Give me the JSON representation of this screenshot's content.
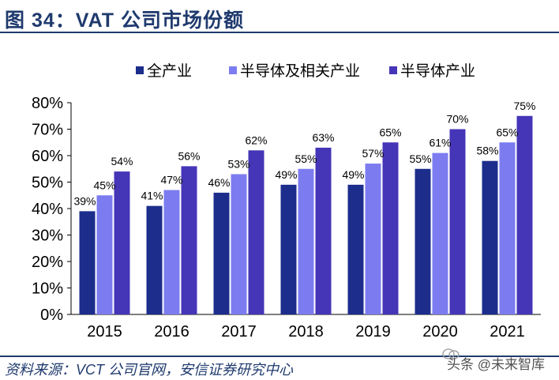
{
  "page": {
    "title": "图 34：VAT 公司市场份额",
    "source": "资料来源：VCT 公司官网，安信证券研究中心",
    "watermark": "头条 @未来智库"
  },
  "chart_data": {
    "type": "bar",
    "title": "",
    "xlabel": "",
    "ylabel": "",
    "ylim": [
      0,
      80
    ],
    "yticks": [
      "0%",
      "10%",
      "20%",
      "30%",
      "40%",
      "50%",
      "60%",
      "70%",
      "80%"
    ],
    "categories": [
      "2015",
      "2016",
      "2017",
      "2018",
      "2019",
      "2020",
      "2021"
    ],
    "legend_position": "top",
    "series": [
      {
        "name": "全产业",
        "color": "#1c2d8c",
        "values": [
          39,
          41,
          46,
          49,
          49,
          55,
          58
        ],
        "labels": [
          "39%",
          "41%",
          "46%",
          "49%",
          "49%",
          "55%",
          "58%"
        ]
      },
      {
        "name": "半导体及相关产业",
        "color": "#7c7cf0",
        "values": [
          45,
          47,
          53,
          55,
          57,
          61,
          65
        ],
        "labels": [
          "45%",
          "47%",
          "53%",
          "55%",
          "57%",
          "61%",
          "65%"
        ]
      },
      {
        "name": "半导体产业",
        "color": "#4535b7",
        "values": [
          54,
          56,
          62,
          63,
          65,
          70,
          75
        ],
        "labels": [
          "54%",
          "56%",
          "62%",
          "63%",
          "65%",
          "70%",
          "75%"
        ]
      }
    ]
  }
}
